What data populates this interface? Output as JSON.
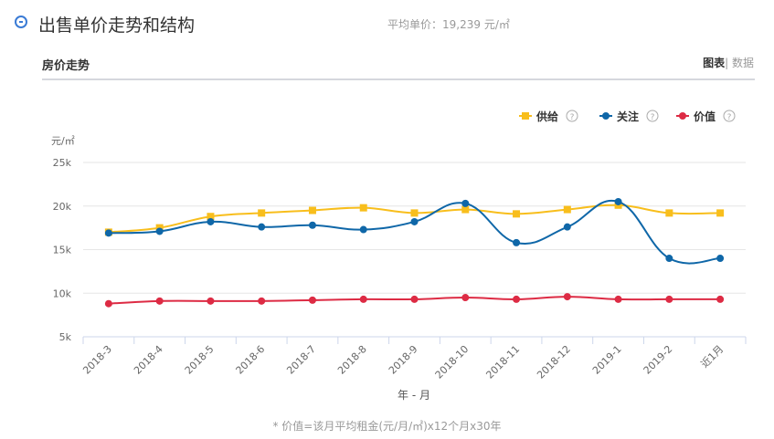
{
  "header": {
    "title": "出售单价走势和结构",
    "avg_label": "平均单价：",
    "avg_value": "19,239 元/㎡",
    "collapse_icon": "minus-circle-icon"
  },
  "section": {
    "title": "房价走势",
    "view_chart": "图表",
    "view_sep": "|",
    "view_data": "数据"
  },
  "footnote": "* 价值=该月平均租金(元/月/㎡)x12个月x30年",
  "chart_data": {
    "type": "line",
    "ylabel": "元/㎡",
    "xlabel": "年 - 月",
    "ylim": [
      5000,
      25000
    ],
    "yticks": [
      {
        "v": 5000,
        "label": "5k"
      },
      {
        "v": 10000,
        "label": "10k"
      },
      {
        "v": 15000,
        "label": "15k"
      },
      {
        "v": 20000,
        "label": "20k"
      },
      {
        "v": 25000,
        "label": "25k"
      }
    ],
    "grid": true,
    "legend_position": "top-right",
    "categories": [
      "2018-3",
      "2018-4",
      "2018-5",
      "2018-6",
      "2018-7",
      "2018-8",
      "2018-9",
      "2018-10",
      "2018-11",
      "2018-12",
      "2019-1",
      "2019-2",
      "近1月"
    ],
    "series": [
      {
        "name": "供给",
        "color": "#f8be1c",
        "marker": "square",
        "values": [
          17000,
          17500,
          18800,
          19200,
          19500,
          19800,
          19200,
          19600,
          19100,
          19600,
          20100,
          19200,
          19200
        ]
      },
      {
        "name": "关注",
        "color": "#0f67a8",
        "marker": "circle",
        "values": [
          16900,
          17100,
          18200,
          17600,
          17800,
          17300,
          18200,
          20300,
          15800,
          17600,
          20500,
          14000,
          14000
        ]
      },
      {
        "name": "价值",
        "color": "#dd2b44",
        "marker": "circle",
        "values": [
          8800,
          9100,
          9100,
          9100,
          9200,
          9300,
          9300,
          9500,
          9300,
          9600,
          9300,
          9300,
          9300
        ]
      }
    ],
    "help_icon": "question-circle-icon"
  }
}
